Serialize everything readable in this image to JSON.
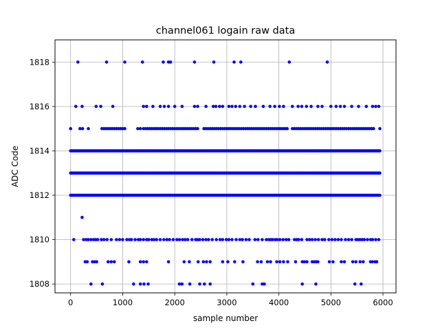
{
  "chart_data": {
    "type": "scatter",
    "title": "channel061 logain raw data",
    "xlabel": "sample number",
    "ylabel": "ADC Code",
    "xlim": [
      -300,
      6250
    ],
    "ylim": [
      1807.6,
      1819.0
    ],
    "xticks": [
      0,
      1000,
      2000,
      3000,
      4000,
      5000,
      6000
    ],
    "yticks": [
      1808,
      1810,
      1812,
      1814,
      1816,
      1818
    ],
    "grid": true,
    "marker_color": "#0000ff",
    "series": [
      {
        "name": "",
        "dense_levels": [
          1812,
          1813,
          1814
        ],
        "sample_range": [
          0,
          5940
        ],
        "sparse_points": {
          "1818": [
            140,
            690,
            1040,
            1380,
            1780,
            1880,
            1920,
            2380,
            2750,
            3140,
            3270,
            4200,
            4930
          ],
          "1816": [
            100,
            220,
            490,
            580,
            810,
            1400,
            1460,
            1580,
            1720,
            1800,
            1880,
            2000,
            2140,
            2380,
            2440,
            2600,
            2740,
            2790,
            2860,
            2920,
            3040,
            3100,
            3170,
            3250,
            3340,
            3460,
            3550,
            3700,
            3830,
            3920,
            4010,
            4090,
            4260,
            4370,
            4440,
            4530,
            4620,
            4750,
            4830,
            5000,
            5100,
            5180,
            5260,
            5400,
            5530,
            5680,
            5800,
            5860,
            5920
          ],
          "1815": [
            0,
            180,
            230,
            340,
            600,
            640,
            680,
            720,
            760,
            800,
            840,
            880,
            920,
            960,
            1000,
            1040,
            1290,
            1340,
            1400,
            1440,
            1480,
            1520,
            1560,
            1600,
            1640,
            1680,
            1720,
            1760,
            1800,
            1840,
            1880,
            1920,
            1960,
            2000,
            2040,
            2080,
            2120,
            2160,
            2200,
            2240,
            2280,
            2320,
            2360,
            2400,
            2440,
            2560,
            2600,
            2640,
            2680,
            2720,
            2760,
            2800,
            2840,
            2880,
            2920,
            2960,
            3000,
            3040,
            3080,
            3120,
            3160,
            3200,
            3240,
            3280,
            3320,
            3360,
            3400,
            3440,
            3480,
            3520,
            3560,
            3600,
            3640,
            3680,
            3720,
            3760,
            3800,
            3840,
            3880,
            3920,
            3960,
            4000,
            4040,
            4080,
            4120,
            4160,
            4260,
            4300,
            4340,
            4380,
            4420,
            4460,
            4500,
            4540,
            4580,
            4620,
            4660,
            4700,
            4740,
            4780,
            4820,
            4860,
            4900,
            4940,
            4980,
            5020,
            5060,
            5100,
            5140,
            5180,
            5220,
            5260,
            5300,
            5340,
            5380,
            5420,
            5460,
            5500,
            5540,
            5580,
            5620,
            5660,
            5700,
            5740,
            5780,
            5820,
            5940
          ],
          "1811": [
            220
          ],
          "1810": [
            60,
            250,
            300,
            340,
            390,
            440,
            480,
            520,
            590,
            640,
            700,
            780,
            880,
            940,
            1000,
            1080,
            1130,
            1170,
            1240,
            1300,
            1340,
            1400,
            1460,
            1500,
            1560,
            1600,
            1650,
            1720,
            1790,
            1850,
            1900,
            1970,
            2040,
            2090,
            2150,
            2200,
            2250,
            2330,
            2400,
            2440,
            2480,
            2540,
            2600,
            2650,
            2720,
            2800,
            2870,
            2920,
            2990,
            3040,
            3100,
            3180,
            3250,
            3300,
            3370,
            3430,
            3540,
            3600,
            3680,
            3760,
            3810,
            3850,
            3880,
            3930,
            3970,
            4020,
            4080,
            4140,
            4190,
            4300,
            4340,
            4380,
            4440,
            4540,
            4590,
            4640,
            4700,
            4760,
            4830,
            4880,
            4960,
            5020,
            5080,
            5140,
            5200,
            5280,
            5340,
            5400,
            5480,
            5520,
            5560,
            5600,
            5640,
            5700,
            5760,
            5800,
            5860,
            5920
          ],
          "1809": [
            280,
            320,
            420,
            460,
            500,
            720,
            780,
            840,
            1120,
            1340,
            1400,
            1460,
            1880,
            2180,
            2280,
            2450,
            2550,
            2610,
            2680,
            2920,
            3020,
            3150,
            3310,
            3590,
            3660,
            3780,
            3840,
            3960,
            4020,
            4090,
            4170,
            4320,
            4450,
            4490,
            4540,
            4640,
            4680,
            4720,
            4750,
            4970,
            5040,
            5200,
            5260,
            5420,
            5480,
            5560,
            5620,
            5760,
            5800,
            5850,
            5880
          ],
          "1808": [
            390,
            610,
            1210,
            1340,
            1410,
            1490,
            2090,
            2140,
            2290,
            2480,
            2570,
            2680,
            3500,
            3680,
            3720,
            4450,
            4710,
            5460,
            5580
          ]
        }
      }
    ]
  }
}
